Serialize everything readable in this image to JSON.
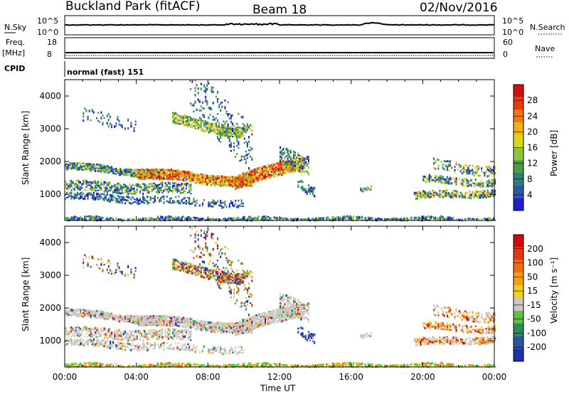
{
  "header": {
    "station": "Buckland Park (fitACF)",
    "beam": "Beam 18",
    "date": "02/Nov/2016"
  },
  "strip_labels": {
    "nsky": "N.Sky",
    "nsky_hi": "10^5",
    "nsky_lo": "10^0",
    "freq": "Freq.",
    "freq_unit": "[MHz]",
    "freq_hi": "18",
    "freq_lo": "8",
    "cpid": "CPID",
    "cpid_value": "normal (fast) 151",
    "nsearch": "N.Search",
    "nsearch_hi": "10^5",
    "nsearch_lo": "10^0",
    "nave": "Nave",
    "nave_hi": "60",
    "nave_lo": "0"
  },
  "chart_data": [
    {
      "type": "heatmap",
      "title": "",
      "xlabel": "",
      "ylabel": "Slant Range [km]",
      "xticks": [
        "00:00",
        "04:00",
        "08:00",
        "12:00",
        "16:00",
        "20:00",
        "00:00"
      ],
      "yticks": [
        1000,
        2000,
        3000,
        4000
      ],
      "ylim": [
        200,
        4500
      ],
      "colorbar": {
        "label": "Power [dB]",
        "ticks": [
          4,
          8,
          12,
          16,
          20,
          24,
          28
        ],
        "colors": [
          "#1f1fd0",
          "#2a57a8",
          "#2e7f7a",
          "#4a9a4a",
          "#8cc43a",
          "#d8d818",
          "#f2b010",
          "#f07a10",
          "#e83a10",
          "#d01010"
        ]
      }
    },
    {
      "type": "heatmap",
      "title": "",
      "xlabel": "Time UT",
      "ylabel": "Slant Range [km]",
      "xticks": [
        "00:00",
        "04:00",
        "08:00",
        "12:00",
        "16:00",
        "20:00",
        "00:00"
      ],
      "yticks": [
        1000,
        2000,
        3000,
        4000
      ],
      "ylim": [
        200,
        4500
      ],
      "colorbar": {
        "label": "Velocity [m s⁻¹]",
        "ticks": [
          "200",
          "100",
          "50",
          "15",
          "-15",
          "-50",
          "-100",
          "-200"
        ],
        "colors": [
          "#1a30b0",
          "#2a55a0",
          "#2e8a5a",
          "#5cc040",
          "#c8c8c8",
          "#f0d020",
          "#f0a010",
          "#f07010",
          "#e03810",
          "#d00a0a"
        ]
      }
    }
  ]
}
